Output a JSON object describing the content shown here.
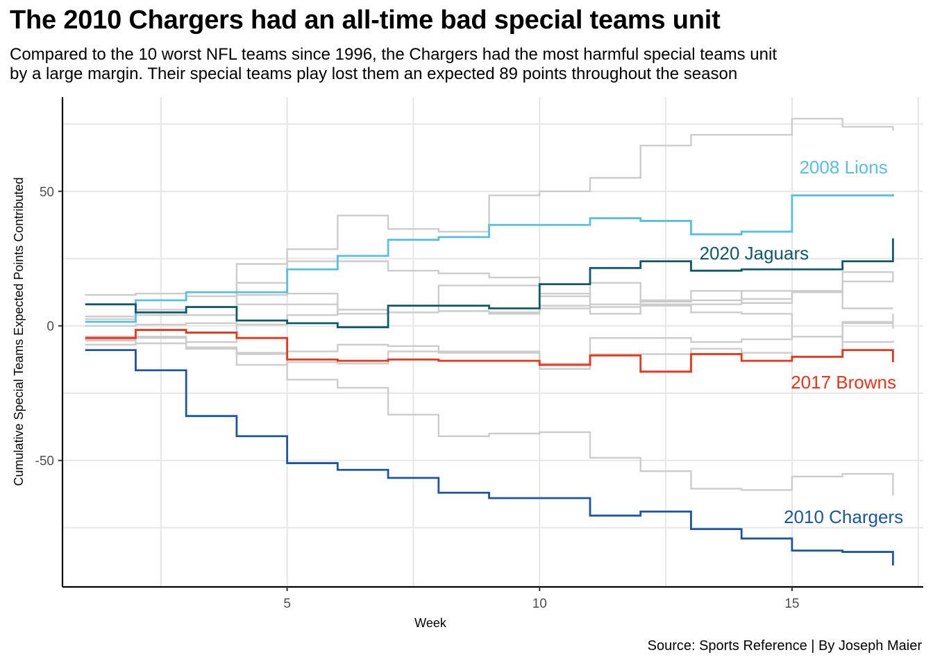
{
  "title": "The 2010 Chargers had an all-time bad special teams unit",
  "subtitle_lines": [
    "Compared to the 10 worst NFL teams since 1996, the Chargers had the most harmful special teams unit",
    "by a large margin. Their special teams play lost them an expected 89 points throughout the season"
  ],
  "caption": "Source: Sports Reference | By Joseph Maier",
  "chart_data": {
    "type": "line",
    "step": true,
    "xlabel": "Week",
    "ylabel": "Cumulative Special Teams Expected Points Contributed",
    "xlim": [
      0.55,
      17.6
    ],
    "ylim": [
      -97,
      85
    ],
    "x_ticks": [
      5,
      10,
      15
    ],
    "y_ticks": [
      -50,
      0,
      50
    ],
    "grid": true,
    "x": [
      1,
      2,
      3,
      4,
      5,
      6,
      7,
      8,
      9,
      10,
      11,
      12,
      13,
      14,
      15,
      16,
      17
    ],
    "highlight": [
      {
        "name": "2008 Lions",
        "color": "#56bfe4",
        "values": [
          1.5,
          9.5,
          12.5,
          12.5,
          21,
          26,
          32,
          33,
          37.5,
          37.5,
          40,
          39,
          34,
          35,
          48.5,
          48.5,
          49
        ]
      },
      {
        "name": "2020 Jaguars",
        "color": "#0e5a6a",
        "values": [
          8,
          5,
          7,
          2,
          1,
          -0.5,
          7.5,
          7.5,
          6.5,
          15.5,
          21.5,
          24,
          20.5,
          21,
          21,
          24,
          32.5
        ]
      },
      {
        "name": "2017 Browns",
        "color": "#ee3318",
        "values": [
          -4.5,
          -1.5,
          -2.5,
          -4.5,
          -12.5,
          -13,
          -12.5,
          -13,
          -13,
          -14.5,
          -11,
          -17,
          -10.5,
          -13,
          -11.5,
          -9,
          -13.5
        ]
      },
      {
        "name": "2010 Chargers",
        "color": "#1a56a3",
        "values": [
          -9,
          -16.5,
          -33.5,
          -41,
          -51,
          -53.5,
          -56.5,
          -62,
          -64,
          -64,
          -70.5,
          -69,
          -75.5,
          -79,
          -83.5,
          -84,
          -89
        ]
      }
    ],
    "background": {
      "color": "#cccccc",
      "series": [
        [
          11.5,
          12,
          11,
          23,
          28.5,
          41,
          36,
          35,
          48.5,
          50,
          55,
          67,
          71,
          71,
          77,
          74,
          72.5
        ],
        [
          3.5,
          6,
          4,
          16,
          24,
          24,
          20.5,
          19.5,
          18,
          11,
          16,
          9.5,
          13,
          8.5,
          13,
          20,
          17
        ],
        [
          2.5,
          4,
          4,
          11.5,
          12,
          6,
          5,
          15,
          15,
          12,
          7,
          9,
          9.5,
          10,
          12.5,
          16.5,
          17.5
        ],
        [
          -5.5,
          -6.5,
          -6,
          8,
          8,
          4.5,
          7.5,
          5.5,
          4.5,
          7.5,
          8,
          8,
          8,
          13,
          12.5,
          6.5,
          6.5
        ],
        [
          0,
          0.5,
          1,
          0.5,
          4,
          6,
          5,
          5.5,
          5,
          6.5,
          4.5,
          7.5,
          5,
          4.5,
          -4,
          1,
          4.5
        ],
        [
          -5,
          -4,
          -8.5,
          -14.5,
          -9.5,
          -7,
          -7.5,
          -10,
          -10,
          -14,
          -10.5,
          -10.5,
          -8.5,
          -10,
          -11.5,
          1.5,
          -1
        ],
        [
          -7,
          -6.5,
          -8,
          -10.5,
          -13.5,
          -14,
          -9.5,
          -9.5,
          -9.5,
          -16,
          -4.5,
          -4.5,
          -6,
          -5,
          -4,
          -6,
          -5.5
        ],
        [
          -4,
          -4.5,
          -8.5,
          -10,
          -20,
          -23,
          -33,
          -41,
          -40,
          -39.5,
          -49,
          -54,
          -60.5,
          -61,
          -56,
          -55,
          -63
        ]
      ]
    }
  }
}
